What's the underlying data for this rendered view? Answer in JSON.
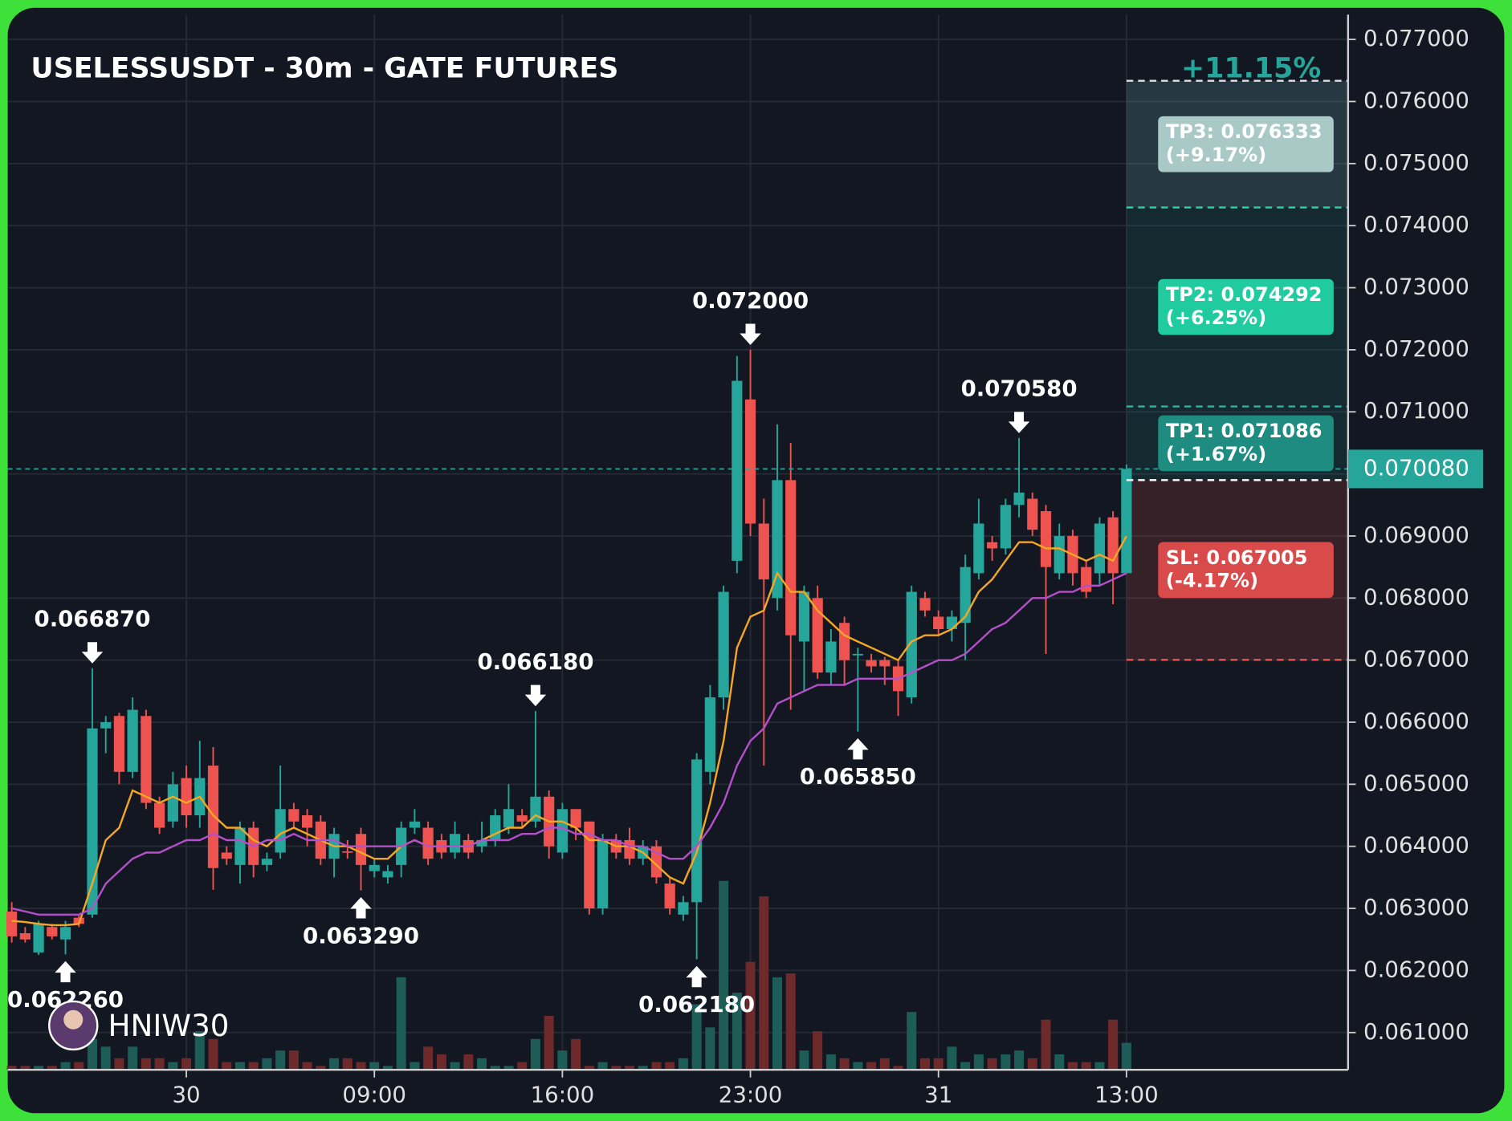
{
  "chart_data": {
    "type": "candlestick",
    "title": "USELESSUSDT - 30m - GATE FUTURES",
    "watermark": "HNIW30",
    "up_color": "#26a69a",
    "down_color": "#ef5350",
    "xlim": [
      -0.3,
      99.5
    ],
    "xticks": [
      {
        "value": 13,
        "label": "30"
      },
      {
        "value": 27,
        "label": "09:00"
      },
      {
        "value": 41,
        "label": "16:00"
      },
      {
        "value": 55,
        "label": "23:00"
      },
      {
        "value": 69,
        "label": "31"
      },
      {
        "value": 83,
        "label": "13:00"
      }
    ],
    "ylim": [
      0.0604,
      0.0774
    ],
    "yticks": [
      {
        "value": 0.061,
        "label": "0.061000"
      },
      {
        "value": 0.062,
        "label": "0.062000"
      },
      {
        "value": 0.063,
        "label": "0.063000"
      },
      {
        "value": 0.064,
        "label": "0.064000"
      },
      {
        "value": 0.065,
        "label": "0.065000"
      },
      {
        "value": 0.066,
        "label": "0.066000"
      },
      {
        "value": 0.067,
        "label": "0.067000"
      },
      {
        "value": 0.068,
        "label": "0.068000"
      },
      {
        "value": 0.069,
        "label": "0.069000"
      },
      {
        "value": 0.07,
        "label": "0.070000"
      },
      {
        "value": 0.071,
        "label": "0.071000"
      },
      {
        "value": 0.072,
        "label": "0.072000"
      },
      {
        "value": 0.073,
        "label": "0.073000"
      },
      {
        "value": 0.074,
        "label": "0.074000"
      },
      {
        "value": 0.075,
        "label": "0.075000"
      },
      {
        "value": 0.076,
        "label": "0.076000"
      },
      {
        "value": 0.077,
        "label": "0.077000"
      }
    ],
    "grid": true,
    "open": [
      0.06295,
      0.0626,
      0.06229,
      0.0627,
      0.0625,
      0.06285,
      0.0629,
      0.0659,
      0.0661,
      0.0652,
      0.0661,
      0.0647,
      0.0644,
      0.0651,
      0.0645,
      0.0653,
      0.0639,
      0.0637,
      0.0643,
      0.0637,
      0.0639,
      0.0646,
      0.0645,
      0.0644,
      0.0638,
      0.06392,
      0.0642,
      0.0636,
      0.0635,
      0.0637,
      0.0643,
      0.0643,
      0.0641,
      0.0639,
      0.0641,
      0.064,
      0.0641,
      0.0643,
      0.0645,
      0.0644,
      0.0648,
      0.0639,
      0.0646,
      0.0644,
      0.063,
      0.0641,
      0.0641,
      0.0638,
      0.064,
      0.0634,
      0.0629,
      0.0631,
      0.0652,
      0.0664,
      0.0686,
      0.0712,
      0.0692,
      0.068,
      0.0699,
      0.0673,
      0.068,
      0.0668,
      0.0676,
      0.0671,
      0.067,
      0.067,
      0.0669,
      0.0664,
      0.068,
      0.0677,
      0.0675,
      0.0676,
      0.0684,
      0.0689,
      0.0688,
      0.0695,
      0.0696,
      0.0694,
      0.0684,
      0.069,
      0.0685,
      0.0684,
      0.0693,
      0.0684
    ],
    "high": [
      0.0631,
      0.0627,
      0.0628,
      0.06275,
      0.0628,
      0.0629,
      0.06687,
      0.0661,
      0.06615,
      0.0664,
      0.0662,
      0.0648,
      0.0652,
      0.0653,
      0.0657,
      0.0656,
      0.064,
      0.0644,
      0.0644,
      0.0639,
      0.0653,
      0.0647,
      0.0646,
      0.0645,
      0.0643,
      0.0641,
      0.0643,
      0.0638,
      0.0637,
      0.0644,
      0.0646,
      0.0644,
      0.0642,
      0.0644,
      0.0642,
      0.0644,
      0.0646,
      0.065,
      0.0646,
      0.06618,
      0.0649,
      0.0647,
      0.0646,
      0.0644,
      0.0642,
      0.0642,
      0.0643,
      0.0641,
      0.0641,
      0.0635,
      0.0632,
      0.0655,
      0.0666,
      0.0682,
      0.0719,
      0.072,
      0.0696,
      0.0708,
      0.0705,
      0.0682,
      0.0682,
      0.0675,
      0.0677,
      0.0672,
      0.0671,
      0.06705,
      0.067,
      0.0682,
      0.0681,
      0.0678,
      0.0678,
      0.0687,
      0.0696,
      0.069,
      0.0696,
      0.07058,
      0.0697,
      0.0695,
      0.0692,
      0.0691,
      0.0686,
      0.0693,
      0.0694,
      0.07015
    ],
    "low": [
      0.06245,
      0.06245,
      0.06225,
      0.0625,
      0.06226,
      0.0627,
      0.06285,
      0.0655,
      0.065,
      0.0651,
      0.0646,
      0.0642,
      0.0643,
      0.0643,
      0.0643,
      0.0633,
      0.0637,
      0.0634,
      0.0635,
      0.0636,
      0.0638,
      0.0643,
      0.064,
      0.0637,
      0.0635,
      0.0638,
      0.06329,
      0.0635,
      0.0634,
      0.0635,
      0.0642,
      0.0637,
      0.0638,
      0.0638,
      0.0638,
      0.0639,
      0.064,
      0.0642,
      0.0643,
      0.0643,
      0.0638,
      0.0638,
      0.0641,
      0.0629,
      0.0629,
      0.0638,
      0.0637,
      0.0637,
      0.0634,
      0.0629,
      0.0628,
      0.06218,
      0.065,
      0.0662,
      0.0684,
      0.069,
      0.0653,
      0.0678,
      0.0662,
      0.0665,
      0.0667,
      0.0666,
      0.0666,
      0.06585,
      0.0668,
      0.0666,
      0.0661,
      0.0663,
      0.0677,
      0.0674,
      0.0673,
      0.067,
      0.0683,
      0.0686,
      0.0687,
      0.0693,
      0.069,
      0.0671,
      0.0683,
      0.0682,
      0.068,
      0.0682,
      0.0679,
      0.0684
    ],
    "close": [
      0.06255,
      0.0625,
      0.06275,
      0.06255,
      0.0627,
      0.06275,
      0.0659,
      0.066,
      0.0652,
      0.0662,
      0.0647,
      0.0643,
      0.065,
      0.0645,
      0.0651,
      0.06365,
      0.0638,
      0.0643,
      0.0637,
      0.0638,
      0.0646,
      0.0644,
      0.0643,
      0.0638,
      0.0642,
      0.0639,
      0.0637,
      0.0637,
      0.0636,
      0.0643,
      0.0644,
      0.0638,
      0.0639,
      0.0642,
      0.0639,
      0.0641,
      0.0645,
      0.0646,
      0.0644,
      0.0648,
      0.064,
      0.0646,
      0.0643,
      0.063,
      0.0641,
      0.0639,
      0.0638,
      0.064,
      0.0635,
      0.063,
      0.0631,
      0.0654,
      0.0664,
      0.0681,
      0.0715,
      0.0692,
      0.0683,
      0.0699,
      0.0674,
      0.0681,
      0.0668,
      0.0673,
      0.067,
      0.0671,
      0.0669,
      0.0669,
      0.0665,
      0.0681,
      0.0678,
      0.0675,
      0.0677,
      0.0685,
      0.0692,
      0.0688,
      0.0695,
      0.0697,
      0.0691,
      0.0685,
      0.069,
      0.0684,
      0.0681,
      0.0692,
      0.0684,
      0.07008
    ],
    "volume": [
      1,
      1,
      1,
      1,
      2,
      2,
      8,
      6,
      3,
      6,
      3,
      3,
      2,
      3,
      10,
      8,
      2,
      2,
      2,
      3,
      5,
      5,
      2,
      1,
      3,
      3,
      2,
      2,
      1,
      24,
      2,
      6,
      4,
      2,
      4,
      3,
      1,
      1,
      2,
      8,
      14,
      5,
      8,
      1,
      2,
      1,
      1,
      1,
      2,
      2,
      3,
      17,
      11,
      49,
      20,
      28,
      45,
      24,
      25,
      5,
      10,
      4,
      3,
      2,
      2,
      3,
      1,
      15,
      3,
      3,
      6,
      2,
      4,
      3,
      4,
      5,
      3,
      13,
      4,
      2,
      2,
      2,
      13,
      7
    ],
    "vlim": [
      0,
      100
    ],
    "volume_up_color": "#1d5c57",
    "volume_down_color": "#6e2a2a",
    "ma_lines": [
      {
        "color": "#f5a623",
        "values": [
          0.0628,
          0.06278,
          0.06275,
          0.06273,
          0.06273,
          0.06275,
          0.0634,
          0.0641,
          0.0643,
          0.0649,
          0.0648,
          0.0647,
          0.0648,
          0.0647,
          0.0648,
          0.0645,
          0.0643,
          0.0643,
          0.0641,
          0.064,
          0.0642,
          0.0643,
          0.0642,
          0.0641,
          0.064,
          0.064,
          0.0639,
          0.0638,
          0.0638,
          0.064,
          0.0641,
          0.064,
          0.064,
          0.064,
          0.064,
          0.0641,
          0.0642,
          0.0643,
          0.0643,
          0.0645,
          0.0644,
          0.0644,
          0.0643,
          0.0641,
          0.0641,
          0.064,
          0.064,
          0.0639,
          0.0637,
          0.0635,
          0.0634,
          0.0639,
          0.0647,
          0.0657,
          0.0672,
          0.0677,
          0.0678,
          0.0684,
          0.0681,
          0.0681,
          0.0678,
          0.0676,
          0.0674,
          0.0673,
          0.0672,
          0.0671,
          0.067,
          0.0673,
          0.0674,
          0.0674,
          0.0675,
          0.0677,
          0.0681,
          0.0683,
          0.0686,
          0.0689,
          0.0689,
          0.0688,
          0.0688,
          0.0687,
          0.0686,
          0.0687,
          0.0686,
          0.069
        ]
      },
      {
        "color": "#b44fc9",
        "values": [
          0.063,
          0.06295,
          0.0629,
          0.0629,
          0.0629,
          0.0629,
          0.063,
          0.0634,
          0.0636,
          0.0638,
          0.0639,
          0.0639,
          0.064,
          0.0641,
          0.0641,
          0.0642,
          0.0641,
          0.0641,
          0.064,
          0.0641,
          0.0641,
          0.0642,
          0.0641,
          0.0641,
          0.0641,
          0.064,
          0.064,
          0.064,
          0.064,
          0.064,
          0.0641,
          0.064,
          0.064,
          0.064,
          0.064,
          0.0641,
          0.0641,
          0.0641,
          0.0642,
          0.0642,
          0.0643,
          0.0643,
          0.0642,
          0.0642,
          0.0641,
          0.0641,
          0.064,
          0.064,
          0.0639,
          0.0638,
          0.0638,
          0.064,
          0.0643,
          0.0647,
          0.0653,
          0.0657,
          0.0659,
          0.0663,
          0.0664,
          0.0665,
          0.0666,
          0.0666,
          0.0666,
          0.0667,
          0.0667,
          0.0667,
          0.0667,
          0.0668,
          0.0669,
          0.067,
          0.067,
          0.0671,
          0.0673,
          0.0675,
          0.0676,
          0.0678,
          0.068,
          0.068,
          0.0681,
          0.0681,
          0.0682,
          0.0682,
          0.0683,
          0.0684
        ]
      }
    ],
    "annotations": [
      {
        "x": 6,
        "value": 0.06687,
        "label": "0.066870",
        "kind": "high"
      },
      {
        "x": 4,
        "value": 0.06226,
        "label": "0.062260",
        "kind": "low"
      },
      {
        "x": 26,
        "value": 0.06329,
        "label": "0.063290",
        "kind": "low"
      },
      {
        "x": 39,
        "value": 0.06618,
        "label": "0.066180",
        "kind": "high"
      },
      {
        "x": 51,
        "value": 0.06218,
        "label": "0.062180",
        "kind": "low"
      },
      {
        "x": 55,
        "value": 0.072,
        "label": "0.072000",
        "kind": "high"
      },
      {
        "x": 63,
        "value": 0.06585,
        "label": "0.065850",
        "kind": "low"
      },
      {
        "x": 75,
        "value": 0.07058,
        "label": "0.070580",
        "kind": "high"
      }
    ],
    "current": {
      "value": 0.07008,
      "label": "0.070080",
      "color": "#26a69a"
    },
    "trade": {
      "start_x": 83,
      "total_change": "+11.15%",
      "entry": 0.0699,
      "targets": [
        {
          "label": "TP3: 0.076333",
          "sub": "(+9.17%)",
          "value": 0.076333,
          "color": "#a9c9c6",
          "line_color": "#e0e0e0"
        },
        {
          "label": "TP2: 0.074292",
          "sub": "(+6.25%)",
          "value": 0.074292,
          "color": "#1fcb9f",
          "line_color": "#2ed3a4"
        },
        {
          "label": "TP1: 0.071086",
          "sub": "(+1.67%)",
          "value": 0.071086,
          "color": "#1f8c82",
          "line_color": "#2ab5a5"
        }
      ],
      "stop": {
        "label": "SL: 0.067005",
        "sub": "(-4.17%)",
        "value": 0.067005,
        "color": "#d94a4a",
        "line_color": "#ef5350"
      }
    }
  }
}
